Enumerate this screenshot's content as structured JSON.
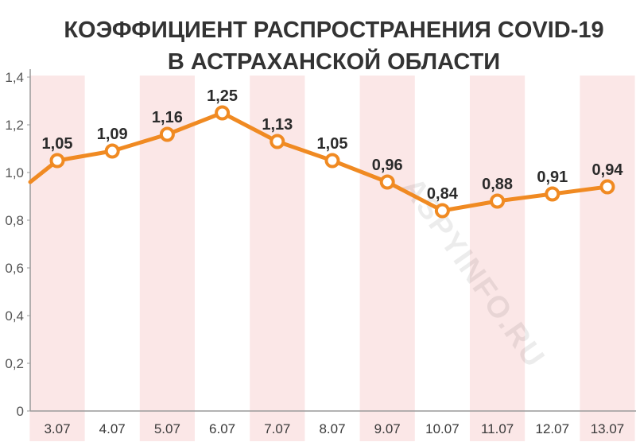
{
  "chart_data": {
    "type": "line",
    "title_lines": [
      "КОЭФФИЦИЕНТ РАСПРОСТРАНЕНИЯ COVID-19",
      "В АСТРАХАНСКОЙ ОБЛАСТИ"
    ],
    "categories": [
      "3.07",
      "4.07",
      "5.07",
      "6.07",
      "7.07",
      "8.07",
      "9.07",
      "10.07",
      "11.07",
      "12.07",
      "13.07"
    ],
    "values": [
      1.05,
      1.09,
      1.16,
      1.25,
      1.13,
      1.05,
      0.96,
      0.84,
      0.88,
      0.91,
      0.94
    ],
    "data_labels": [
      "1,05",
      "1,09",
      "1,16",
      "1,25",
      "1,13",
      "1,05",
      "0,96",
      "0,84",
      "0,88",
      "0,91",
      "0,94"
    ],
    "lead_in_value": 0.96,
    "yticks": [
      0,
      0.2,
      0.4,
      0.6,
      0.8,
      1.0,
      1.2,
      1.4
    ],
    "ytick_labels": [
      "0",
      "0,2",
      "0,4",
      "0,6",
      "0,8",
      "1,0",
      "1,2",
      "1,4"
    ],
    "ylim": [
      0,
      1.4
    ],
    "grid": false,
    "legend": "none",
    "watermark": "ASPYINFO.RU",
    "colors": {
      "line": "#f08a22",
      "marker_fill": "#ffffff",
      "column_band": "#fbe7e7",
      "axis": "#9a9a9a",
      "title": "#333333"
    }
  }
}
